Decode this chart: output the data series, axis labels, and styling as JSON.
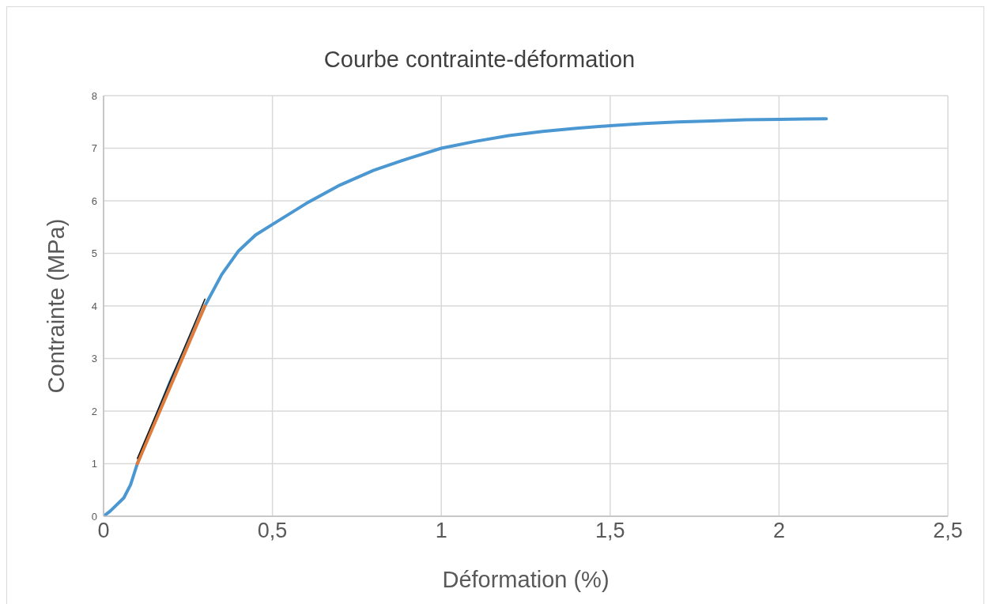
{
  "chart_data": {
    "type": "line",
    "title": "Courbe contrainte-déformation",
    "xlabel": "Déformation (%)",
    "ylabel": "Contrainte (MPa)",
    "series": [
      {
        "color": "#4a97d2",
        "x": [
          0,
          0.02,
          0.06,
          0.08,
          0.1,
          0.15,
          0.2,
          0.25,
          0.3,
          0.35,
          0.4,
          0.45,
          0.5,
          0.6,
          0.7,
          0.8,
          0.9,
          1.0,
          1.1,
          1.2,
          1.3,
          1.4,
          1.5,
          1.6,
          1.7,
          1.8,
          1.9,
          2.0,
          2.14
        ],
        "values": [
          0,
          0.1,
          0.35,
          0.6,
          1.0,
          1.8,
          2.6,
          3.3,
          4.0,
          4.6,
          5.05,
          5.35,
          5.55,
          5.95,
          6.3,
          6.58,
          6.8,
          7.0,
          7.13,
          7.24,
          7.32,
          7.38,
          7.43,
          7.47,
          7.5,
          7.52,
          7.54,
          7.55,
          7.56
        ]
      },
      {
        "color": "#e07b39",
        "x": [
          0.1,
          0.3
        ],
        "values": [
          1.0,
          4.0
        ]
      },
      {
        "color": "#1a1a1a",
        "x": [
          0.1,
          0.3
        ],
        "values": [
          1.1,
          4.13
        ]
      }
    ],
    "xlim": [
      0,
      2.5
    ],
    "xticks": [
      0,
      {
        "value": 0.5,
        "label": "0,5"
      },
      1,
      {
        "value": 1.5,
        "label": "1,5"
      },
      2,
      {
        "value": 2.5,
        "label": "2,5"
      }
    ],
    "ylim": [
      0,
      8
    ],
    "yticks": [
      0,
      1,
      2,
      3,
      4,
      5,
      6,
      7,
      8
    ],
    "grid": true,
    "marker": "none",
    "line_style": "solid"
  }
}
